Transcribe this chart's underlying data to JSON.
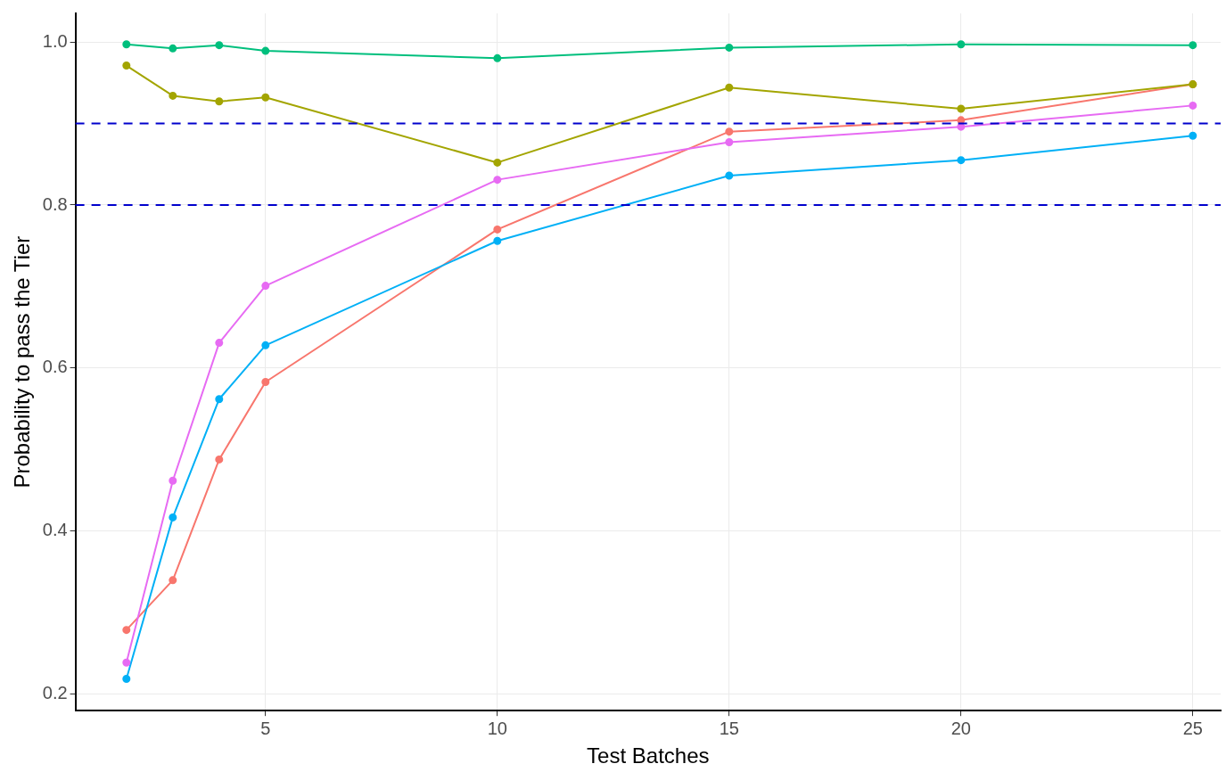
{
  "chart_data": {
    "type": "line",
    "xlabel": "Test Batches",
    "ylabel": "Probability to pass the Tier",
    "x": [
      2,
      3,
      4,
      5,
      10,
      15,
      20,
      25
    ],
    "series": [
      {
        "color": "#f8766d",
        "values": [
          0.279,
          0.34,
          0.488,
          0.583,
          0.77,
          0.89,
          0.904,
          0.948
        ]
      },
      {
        "color": "#a3a500",
        "values": [
          0.971,
          0.934,
          0.927,
          0.932,
          0.852,
          0.944,
          0.918,
          0.948
        ]
      },
      {
        "color": "#00bf7d",
        "values": [
          0.997,
          0.992,
          0.996,
          0.989,
          0.98,
          0.993,
          0.997,
          0.996
        ]
      },
      {
        "color": "#00b0f6",
        "values": [
          0.219,
          0.417,
          0.562,
          0.628,
          0.756,
          0.836,
          0.855,
          0.885
        ]
      },
      {
        "color": "#e76bf3",
        "values": [
          0.239,
          0.462,
          0.631,
          0.701,
          0.831,
          0.877,
          0.896,
          0.922
        ]
      }
    ],
    "xlim": [
      0.9,
      25.6
    ],
    "xticks": [
      5,
      10,
      15,
      20,
      25
    ],
    "ylim": [
      0.18,
      1.035
    ],
    "yticks": [
      {
        "value": 0.2,
        "label": "0.2"
      },
      {
        "value": 0.4,
        "label": "0.4"
      },
      {
        "value": 0.6,
        "label": "0.6"
      },
      {
        "value": 0.8,
        "label": "0.8"
      },
      {
        "value": 1.0,
        "label": "1.0"
      }
    ],
    "ref_lines": [
      {
        "axis": "y",
        "value": 0.9,
        "color": "#0000cc",
        "line_style": "dashed"
      },
      {
        "axis": "y",
        "value": 0.8,
        "color": "#0000cc",
        "line_style": "dashed"
      }
    ],
    "grid": true,
    "legend": false,
    "marker": "circle",
    "line_style": "solid"
  }
}
